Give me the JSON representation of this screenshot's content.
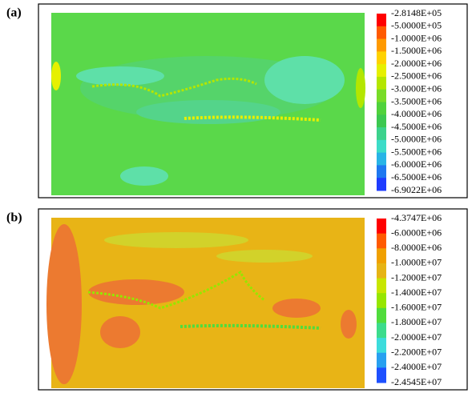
{
  "panels": [
    {
      "label": "(a)",
      "colorbar": {
        "labels": [
          "-2.8148E+05",
          "-5.0000E+05",
          "-1.0000E+06",
          "-1.5000E+06",
          "-2.0000E+06",
          "-2.5000E+06",
          "-3.0000E+06",
          "-3.5000E+06",
          "-4.0000E+06",
          "-4.5000E+06",
          "-5.0000E+06",
          "-5.5000E+06",
          "-6.0000E+06",
          "-6.5000E+06",
          "-6.9022E+06"
        ],
        "colors": [
          "#ff0000",
          "#ff5a00",
          "#ff9a00",
          "#ffd200",
          "#e6f000",
          "#b4e600",
          "#78dc28",
          "#50d23c",
          "#3cc850",
          "#3cd28c",
          "#3cdcc8",
          "#28b4e6",
          "#1e78f0",
          "#1e3cff"
        ]
      }
    },
    {
      "label": "(b)",
      "colorbar": {
        "labels": [
          "-4.3747E+06",
          "-6.0000E+06",
          "-8.0000E+06",
          "-1.0000E+07",
          "-1.2000E+07",
          "-1.4000E+07",
          "-1.6000E+07",
          "-1.8000E+07",
          "-2.0000E+07",
          "-2.2000E+07",
          "-2.4000E+07",
          "-2.4545E+07"
        ],
        "colors": [
          "#ff0000",
          "#ff5a00",
          "#f0a000",
          "#e6b414",
          "#c8e600",
          "#96e600",
          "#50dc3c",
          "#3cdc8c",
          "#3cdcdc",
          "#28a0f0",
          "#1e50ff"
        ]
      }
    }
  ]
}
